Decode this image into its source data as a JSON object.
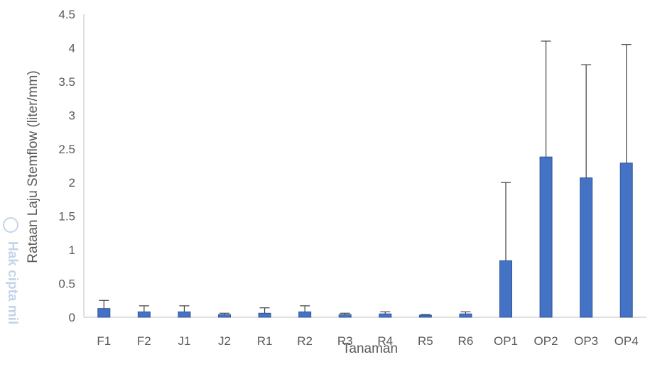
{
  "chart_data": {
    "type": "bar",
    "title": "",
    "xlabel": "Tanaman",
    "ylabel": "Rataan Laju Stemflow (liter/mm)",
    "ylim": [
      0,
      4.5
    ],
    "yticks": [
      "0",
      "0.5",
      "1",
      "1.5",
      "2",
      "2.5",
      "3",
      "3.5",
      "4",
      "4.5"
    ],
    "grid": false,
    "categories": [
      "F1",
      "F2",
      "J1",
      "J2",
      "R1",
      "R2",
      "R3",
      "R4",
      "R5",
      "R6",
      "OP1",
      "OP2",
      "OP3",
      "OP4"
    ],
    "values": [
      0.13,
      0.08,
      0.08,
      0.04,
      0.06,
      0.08,
      0.04,
      0.05,
      0.03,
      0.05,
      0.84,
      2.38,
      2.07,
      2.29
    ],
    "error_upper": [
      0.25,
      0.17,
      0.17,
      0.06,
      0.14,
      0.17,
      0.06,
      0.08,
      0.04,
      0.08,
      2.0,
      4.1,
      3.75,
      4.05
    ],
    "bar_color": "#4472c4",
    "bar_edge_color": "#2f5597",
    "error_bar_color": "#404040"
  },
  "watermark": {
    "text": "Hak cipta mil",
    "color": "#b9cde6"
  }
}
